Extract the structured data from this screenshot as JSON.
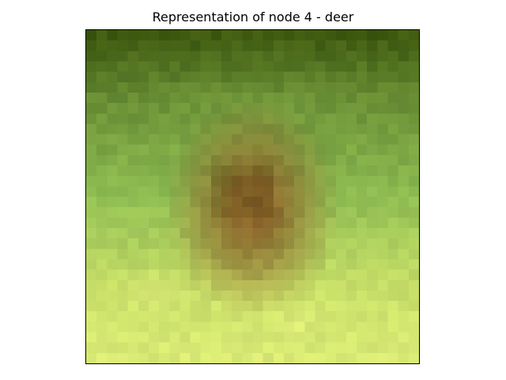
{
  "figure": {
    "title": "Representation of node 4 - deer"
  },
  "image": {
    "subject": "deer",
    "grid": 32,
    "palette": {
      "dark_green": "#3f5a10",
      "mid_green": "#6f963a",
      "light_green": "#8fbd52",
      "yellow_green": "#c8df68",
      "pale_yellow": "#e6f27e",
      "brown": "#8e6a2e",
      "dark_brown": "#7a5a22"
    },
    "axes": {
      "ticks": false,
      "frame_color": "#000000"
    }
  }
}
